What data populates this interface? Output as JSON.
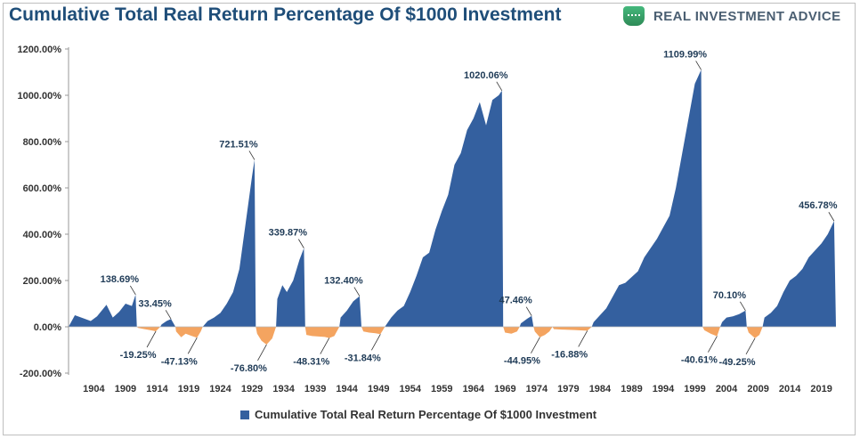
{
  "header": {
    "title": "Cumulative Total Real Return Percentage Of $1000 Investment",
    "brand": "REAL INVESTMENT ADVICE",
    "brand_icon": "money-clip-icon"
  },
  "colors": {
    "positive": "#34609f",
    "negative": "#f4a460",
    "title": "#1f4e79",
    "label": "#1f3b57"
  },
  "chart_data": {
    "type": "area",
    "title": "Cumulative Total Real Return Percentage Of $1000 Investment",
    "xlabel": "",
    "ylabel": "",
    "xlim": [
      1900,
      2021.3
    ],
    "ylim": [
      -200,
      1200
    ],
    "y_ticks": [
      "-200.00%",
      "0.00%",
      "200.00%",
      "400.00%",
      "600.00%",
      "800.00%",
      "1000.00%",
      "1200.00%"
    ],
    "x_ticks": [
      "1904",
      "1909",
      "1914",
      "1919",
      "1924",
      "1929",
      "1934",
      "1939",
      "1944",
      "1949",
      "1954",
      "1959",
      "1964",
      "1969",
      "1974",
      "1979",
      "1984",
      "1989",
      "1994",
      "1999",
      "2004",
      "2009",
      "2014",
      "2019"
    ],
    "grid": false,
    "legend_position": "bottom",
    "series": [
      {
        "name": "Cumulative Total Real Return Percentage Of $1000 Investment",
        "points": [
          [
            1900.0,
            0
          ],
          [
            1901.0,
            50
          ],
          [
            1902.5,
            35
          ],
          [
            1903.5,
            25
          ],
          [
            1904.5,
            45
          ],
          [
            1906.0,
            95
          ],
          [
            1907.0,
            40
          ],
          [
            1908.0,
            65
          ],
          [
            1909.0,
            100
          ],
          [
            1910.0,
            90
          ],
          [
            1910.6,
            138.69
          ],
          [
            1910.8,
            0
          ],
          [
            1911.0,
            -5
          ],
          [
            1912.0,
            -10
          ],
          [
            1913.0,
            -15
          ],
          [
            1913.8,
            -19.25
          ],
          [
            1914.5,
            0
          ],
          [
            1914.7,
            10
          ],
          [
            1915.5,
            25
          ],
          [
            1916.2,
            33.45
          ],
          [
            1916.9,
            0
          ],
          [
            1917.0,
            -20
          ],
          [
            1917.8,
            -45
          ],
          [
            1918.5,
            -30
          ],
          [
            1919.5,
            -40
          ],
          [
            1920.3,
            -47.13
          ],
          [
            1920.9,
            -20
          ],
          [
            1921.2,
            0
          ],
          [
            1922.0,
            25
          ],
          [
            1923.0,
            40
          ],
          [
            1924.0,
            60
          ],
          [
            1925.0,
            100
          ],
          [
            1926.0,
            150
          ],
          [
            1927.0,
            250
          ],
          [
            1928.0,
            450
          ],
          [
            1929.0,
            650
          ],
          [
            1929.4,
            721.51
          ],
          [
            1929.6,
            0
          ],
          [
            1929.8,
            -30
          ],
          [
            1930.5,
            -60
          ],
          [
            1931.3,
            -76.8
          ],
          [
            1932.2,
            -50
          ],
          [
            1932.8,
            0
          ],
          [
            1933.0,
            120
          ],
          [
            1933.8,
            180
          ],
          [
            1934.5,
            150
          ],
          [
            1935.5,
            200
          ],
          [
            1936.5,
            290
          ],
          [
            1937.2,
            339.87
          ],
          [
            1937.4,
            0
          ],
          [
            1937.6,
            -35
          ],
          [
            1938.5,
            -40
          ],
          [
            1939.5,
            -42
          ],
          [
            1940.5,
            -44
          ],
          [
            1941.2,
            -48.31
          ],
          [
            1942.0,
            -40
          ],
          [
            1942.8,
            0
          ],
          [
            1943.0,
            40
          ],
          [
            1944.0,
            70
          ],
          [
            1945.0,
            110
          ],
          [
            1946.0,
            132.4
          ],
          [
            1946.3,
            0
          ],
          [
            1946.6,
            -20
          ],
          [
            1947.5,
            -25
          ],
          [
            1948.5,
            -28
          ],
          [
            1949.3,
            -31.84
          ],
          [
            1950.0,
            0
          ],
          [
            1951.0,
            40
          ],
          [
            1952.0,
            70
          ],
          [
            1953.0,
            90
          ],
          [
            1954.0,
            150
          ],
          [
            1955.0,
            220
          ],
          [
            1956.0,
            300
          ],
          [
            1957.0,
            320
          ],
          [
            1958.0,
            420
          ],
          [
            1959.0,
            500
          ],
          [
            1960.0,
            570
          ],
          [
            1961.0,
            700
          ],
          [
            1962.0,
            750
          ],
          [
            1963.0,
            850
          ],
          [
            1964.0,
            900
          ],
          [
            1965.0,
            970
          ],
          [
            1966.0,
            870
          ],
          [
            1967.0,
            980
          ],
          [
            1968.0,
            1000
          ],
          [
            1968.5,
            1020.06
          ],
          [
            1968.7,
            0
          ],
          [
            1969.0,
            -25
          ],
          [
            1970.0,
            -30
          ],
          [
            1970.9,
            -20
          ],
          [
            1971.3,
            0
          ],
          [
            1971.5,
            15
          ],
          [
            1972.5,
            35
          ],
          [
            1973.2,
            47.46
          ],
          [
            1973.5,
            0
          ],
          [
            1973.7,
            -20
          ],
          [
            1974.5,
            -44.95
          ],
          [
            1975.3,
            -35
          ],
          [
            1976.0,
            -20
          ],
          [
            1976.5,
            0
          ],
          [
            1976.7,
            -10
          ],
          [
            1978.0,
            -12
          ],
          [
            1980.0,
            -14
          ],
          [
            1982.0,
            -16.88
          ],
          [
            1982.7,
            0
          ],
          [
            1983.0,
            20
          ],
          [
            1985.0,
            80
          ],
          [
            1987.0,
            180
          ],
          [
            1988.0,
            190
          ],
          [
            1990.0,
            240
          ],
          [
            1991.0,
            300
          ],
          [
            1993.0,
            380
          ],
          [
            1995.0,
            480
          ],
          [
            1996.0,
            600
          ],
          [
            1997.0,
            750
          ],
          [
            1998.0,
            900
          ],
          [
            1999.0,
            1050
          ],
          [
            2000.0,
            1109.99
          ],
          [
            2000.2,
            0
          ],
          [
            2000.5,
            -15
          ],
          [
            2001.5,
            -30
          ],
          [
            2002.5,
            -40.61
          ],
          [
            2003.0,
            0
          ],
          [
            2003.3,
            20
          ],
          [
            2004.0,
            40
          ],
          [
            2005.0,
            45
          ],
          [
            2006.0,
            55
          ],
          [
            2007.0,
            70.1
          ],
          [
            2007.2,
            0
          ],
          [
            2007.5,
            -25
          ],
          [
            2008.5,
            -49.25
          ],
          [
            2009.2,
            -35
          ],
          [
            2009.7,
            0
          ],
          [
            2010.0,
            40
          ],
          [
            2011.0,
            60
          ],
          [
            2012.0,
            90
          ],
          [
            2013.0,
            150
          ],
          [
            2014.0,
            200
          ],
          [
            2015.0,
            220
          ],
          [
            2016.0,
            250
          ],
          [
            2017.0,
            300
          ],
          [
            2018.0,
            330
          ],
          [
            2019.0,
            360
          ],
          [
            2020.0,
            400
          ],
          [
            2021.0,
            456.78
          ],
          [
            2021.3,
            0
          ]
        ]
      }
    ],
    "annotations": [
      {
        "x": 1910.6,
        "y": 138.69,
        "text": "138.69%",
        "pos": "above"
      },
      {
        "x": 1913.8,
        "y": -19.25,
        "text": "-19.25%",
        "pos": "below"
      },
      {
        "x": 1916.2,
        "y": 33.45,
        "text": "33.45%",
        "pos": "above"
      },
      {
        "x": 1920.3,
        "y": -47.13,
        "text": "-47.13%",
        "pos": "below"
      },
      {
        "x": 1929.4,
        "y": 721.51,
        "text": "721.51%",
        "pos": "above"
      },
      {
        "x": 1931.3,
        "y": -76.8,
        "text": "-76.80%",
        "pos": "below"
      },
      {
        "x": 1937.2,
        "y": 339.87,
        "text": "339.87%",
        "pos": "above"
      },
      {
        "x": 1941.2,
        "y": -48.31,
        "text": "-48.31%",
        "pos": "below"
      },
      {
        "x": 1946.0,
        "y": 132.4,
        "text": "132.40%",
        "pos": "above"
      },
      {
        "x": 1949.3,
        "y": -31.84,
        "text": "-31.84%",
        "pos": "below"
      },
      {
        "x": 1968.5,
        "y": 1020.06,
        "text": "1020.06%",
        "pos": "above"
      },
      {
        "x": 1974.5,
        "y": -44.95,
        "text": "-44.95%",
        "pos": "below"
      },
      {
        "x": 1973.2,
        "y": 47.46,
        "text": "47.46%",
        "pos": "above"
      },
      {
        "x": 1982.0,
        "y": -16.88,
        "text": "-16.88%",
        "pos": "below"
      },
      {
        "x": 2000.0,
        "y": 1109.99,
        "text": "1109.99%",
        "pos": "above"
      },
      {
        "x": 2002.5,
        "y": -40.61,
        "text": "-40.61%",
        "pos": "below"
      },
      {
        "x": 2007.0,
        "y": 70.1,
        "text": "70.10%",
        "pos": "above"
      },
      {
        "x": 2008.5,
        "y": -49.25,
        "text": "-49.25%",
        "pos": "below"
      },
      {
        "x": 2021.0,
        "y": 456.78,
        "text": "456.78%",
        "pos": "above"
      }
    ]
  }
}
